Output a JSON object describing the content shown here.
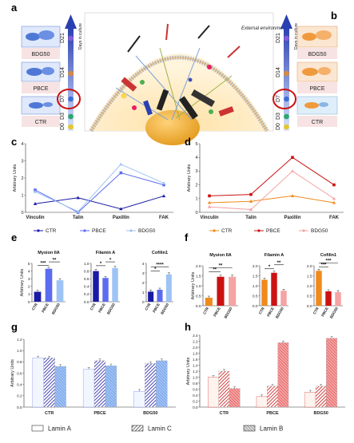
{
  "panels": {
    "a": "a",
    "b": "b",
    "c": "c",
    "d": "d",
    "e": "e",
    "f": "f",
    "g": "g",
    "h": "h"
  },
  "timeline": {
    "days_label": "Days in culture",
    "days": [
      "D0",
      "D3",
      "D7",
      "D14",
      "D21"
    ],
    "left_samples": [
      "BDG50",
      "PBCE",
      "CTR"
    ],
    "right_samples": [
      "BDG50",
      "PBCE",
      "CTR"
    ]
  },
  "schematic": {
    "label": "External environment"
  },
  "colors": {
    "blue_ctr": "#1a1aa6",
    "blue_pbce": "#5b6cf0",
    "blue_bdg": "#9ec3f5",
    "orange_ctr": "#f08a1c",
    "red_pbce": "#cc1111",
    "pink_bdg": "#f5a3a3",
    "time_blue": "#3b4fc4",
    "circle_red": "#cc1111"
  },
  "chart_data": [
    {
      "id": "c",
      "type": "line",
      "ylabel": "Arbitrary Units",
      "categories": [
        "Vinculin",
        "Talin",
        "Paxillin",
        "FAK"
      ],
      "ylim": [
        0,
        4
      ],
      "yticks": [
        0,
        1,
        2,
        3,
        4
      ],
      "series": [
        {
          "name": "CTR",
          "values": [
            0.5,
            0.85,
            0.2,
            0.95
          ]
        },
        {
          "name": "PBCE",
          "values": [
            1.3,
            0.0,
            2.3,
            1.6
          ]
        },
        {
          "name": "BDG50",
          "values": [
            1.2,
            0.05,
            2.8,
            1.7
          ]
        }
      ]
    },
    {
      "id": "d",
      "type": "line",
      "ylabel": "Arbitrary Units",
      "categories": [
        "Vinculin",
        "Talin",
        "Paxillin",
        "FAK"
      ],
      "ylim": [
        0,
        5
      ],
      "yticks": [
        0,
        1,
        2,
        3,
        4,
        5
      ],
      "series": [
        {
          "name": "CTR",
          "values": [
            0.7,
            0.8,
            1.2,
            0.7
          ]
        },
        {
          "name": "PBCE",
          "values": [
            1.2,
            1.3,
            4.0,
            2.0
          ]
        },
        {
          "name": "BDG50",
          "values": [
            0.4,
            0.2,
            3.0,
            1.0
          ]
        }
      ]
    },
    {
      "id": "e1",
      "type": "bar",
      "title": "Mysion IIA",
      "ylabel": "Arbitrary Units",
      "categories": [
        "CTR",
        "PBCE",
        "BDG50"
      ],
      "values": [
        1.3,
        4.3,
        2.8
      ],
      "ylim": [
        0,
        5
      ],
      "yticks": [
        0,
        1,
        2,
        3,
        4,
        5
      ],
      "sig": [
        {
          "from": 0,
          "to": 1,
          "label": "***",
          "level": 4.75
        },
        {
          "from": 1,
          "to": 2,
          "label": "**",
          "level": 5.2
        }
      ]
    },
    {
      "id": "e2",
      "type": "bar",
      "title": "Filamin A",
      "categories": [
        "CTR",
        "PBCE",
        "BDG50"
      ],
      "values": [
        0.8,
        0.62,
        0.88
      ],
      "ylim": [
        0,
        1.0
      ],
      "yticks": [
        0,
        0.2,
        0.4,
        0.6,
        0.8,
        1.0
      ],
      "sig": [
        {
          "from": 0,
          "to": 1,
          "label": "*",
          "level": 0.94
        },
        {
          "from": 1,
          "to": 2,
          "label": "*",
          "level": 1.04
        }
      ]
    },
    {
      "id": "e3",
      "type": "bar",
      "title": "Cofilin1",
      "categories": [
        "CTR",
        "PBCE",
        "BDG50"
      ],
      "values": [
        1.05,
        1.25,
        2.85
      ],
      "ylim": [
        0,
        4
      ],
      "yticks": [
        0,
        1,
        2,
        3,
        4
      ],
      "sig": [
        {
          "from": 0,
          "to": 1,
          "label": "*",
          "level": 3.2
        },
        {
          "from": 0,
          "to": 2,
          "label": "****",
          "level": 3.65
        }
      ]
    },
    {
      "id": "f1",
      "type": "bar",
      "title": "Mysion IIA",
      "ylabel": "Arbitrary Units",
      "categories": [
        "CTR",
        "PBCE",
        "BDG50"
      ],
      "values": [
        0.4,
        1.45,
        1.45
      ],
      "ylim": [
        0,
        2.0
      ],
      "yticks": [
        0,
        0.5,
        1.0,
        1.5,
        2.0
      ],
      "sig": [
        {
          "from": 0,
          "to": 1,
          "label": "**",
          "level": 1.7
        },
        {
          "from": 0,
          "to": 2,
          "label": "**",
          "level": 1.9
        }
      ]
    },
    {
      "id": "f2",
      "type": "bar",
      "title": "Filamin A",
      "categories": [
        "CTR",
        "PBCE",
        "BDG50"
      ],
      "values": [
        1.3,
        1.65,
        0.75
      ],
      "ylim": [
        0,
        2.0
      ],
      "yticks": [
        0,
        0.5,
        1.0,
        1.5,
        2.0
      ],
      "sig": [
        {
          "from": 0,
          "to": 1,
          "label": "*",
          "level": 1.85
        },
        {
          "from": 1,
          "to": 2,
          "label": "**",
          "level": 2.05
        }
      ]
    },
    {
      "id": "f3",
      "type": "bar",
      "title": "Cofilin1",
      "categories": [
        "CTR",
        "PBCE",
        "BDG50"
      ],
      "values": [
        1.75,
        0.72,
        0.68
      ],
      "ylim": [
        0,
        2.0
      ],
      "yticks": [
        0,
        0.5,
        1.0,
        1.5,
        2.0
      ],
      "sig": [
        {
          "from": 0,
          "to": 1,
          "label": "***",
          "level": 1.95
        },
        {
          "from": 0,
          "to": 2,
          "label": "***",
          "level": 2.15
        }
      ]
    },
    {
      "id": "g",
      "type": "bar",
      "ylabel": "Arbitrary Units",
      "categories": [
        "CTR",
        "PBCE",
        "BDG50"
      ],
      "ylim": [
        0,
        1.2
      ],
      "yticks": [
        0,
        0.2,
        0.4,
        0.6,
        0.8,
        1.0,
        1.2
      ],
      "series": [
        {
          "name": "Lamin A",
          "values": [
            0.87,
            0.67,
            0.28
          ]
        },
        {
          "name": "Lamin C",
          "values": [
            0.87,
            0.82,
            0.77
          ]
        },
        {
          "name": "Lamin B",
          "values": [
            0.72,
            0.73,
            0.82
          ]
        }
      ]
    },
    {
      "id": "h",
      "type": "bar",
      "ylabel": "Arbitrary Units",
      "categories": [
        "CTR",
        "PBCE",
        "BDG50"
      ],
      "ylim": [
        0,
        2.4
      ],
      "yticks": [
        0,
        0.2,
        0.4,
        0.6,
        0.8,
        1.0,
        1.2,
        1.4,
        1.6,
        1.8,
        2.0,
        2.2,
        2.4
      ],
      "series": [
        {
          "name": "Lamin A",
          "values": [
            1.0,
            0.35,
            0.5
          ]
        },
        {
          "name": "Lamin C",
          "values": [
            1.2,
            0.7,
            0.7
          ]
        },
        {
          "name": "Lamin B",
          "values": [
            0.62,
            2.15,
            2.3
          ]
        }
      ]
    }
  ],
  "legends": {
    "lines": [
      "CTR",
      "PBCE",
      "BDG50"
    ],
    "lamins": [
      "Lamin A",
      "Lamin C",
      "Lamin B"
    ]
  }
}
